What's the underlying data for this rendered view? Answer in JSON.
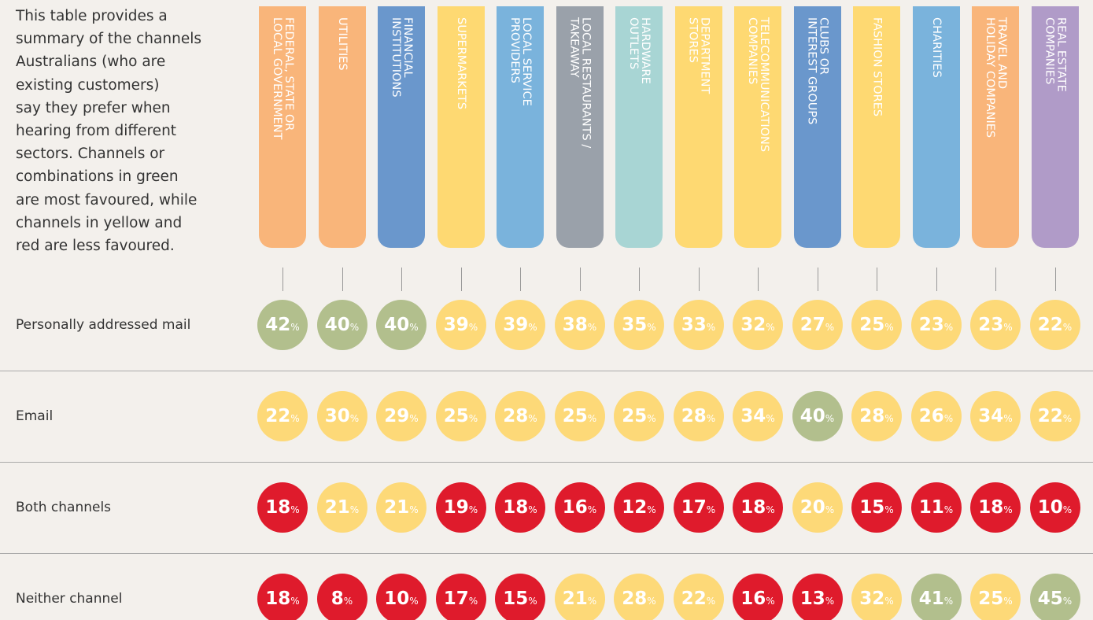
{
  "intro": [
    "This table provides a",
    "summary of the channels",
    "Australians (who are",
    "existing customers)",
    "say they prefer when",
    "hearing from different",
    "sectors. Channels or",
    "combinations in green",
    "are most favoured, while",
    "channels in yellow and",
    "red are less favoured."
  ],
  "unit": "%",
  "columns": [
    {
      "lines": [
        "FEDERAL, STATE OR",
        "LOCAL GOVERNMENT"
      ],
      "color": "#f9b57a"
    },
    {
      "lines": [
        "UTILITIES"
      ],
      "color": "#f9b57a"
    },
    {
      "lines": [
        "FINANCIAL",
        "INSTITUTIONS"
      ],
      "color": "#6a97cc"
    },
    {
      "lines": [
        "SUPERMARKETS"
      ],
      "color": "#fed972"
    },
    {
      "lines": [
        "LOCAL SERVICE",
        "PROVIDERS"
      ],
      "color": "#7ab3dc"
    },
    {
      "lines": [
        "LOCAL RESTAURANTS /",
        "TAKEAWAY"
      ],
      "color": "#9aa1aa"
    },
    {
      "lines": [
        "HARDWARE",
        "OUTLETS"
      ],
      "color": "#a8d5d4"
    },
    {
      "lines": [
        "DEPARTMENT",
        "STORES"
      ],
      "color": "#fed972"
    },
    {
      "lines": [
        "TELECOMMUNICATIONS",
        "COMPANIES"
      ],
      "color": "#fed972"
    },
    {
      "lines": [
        "CLUBS OR",
        "INTEREST GROUPS"
      ],
      "color": "#6a97cc"
    },
    {
      "lines": [
        "FASHION STORES"
      ],
      "color": "#fed972"
    },
    {
      "lines": [
        "CHARITIES"
      ],
      "color": "#7ab3dc"
    },
    {
      "lines": [
        "TRAVEL AND",
        "HOLIDAY COMPANIES"
      ],
      "color": "#f9b57a"
    },
    {
      "lines": [
        "REAL ESTATE",
        "COMPANIES"
      ],
      "color": "#b09bc8"
    }
  ],
  "rows": [
    {
      "label": "Personally addressed mail",
      "cells": [
        {
          "value": 42,
          "color": "#b2bf8d"
        },
        {
          "value": 40,
          "color": "#b2bf8d"
        },
        {
          "value": 40,
          "color": "#b2bf8d"
        },
        {
          "value": 39,
          "color": "#fdd978"
        },
        {
          "value": 39,
          "color": "#fdd978"
        },
        {
          "value": 38,
          "color": "#fdd978"
        },
        {
          "value": 35,
          "color": "#fdd978"
        },
        {
          "value": 33,
          "color": "#fdd978"
        },
        {
          "value": 32,
          "color": "#fdd978"
        },
        {
          "value": 27,
          "color": "#fdd978"
        },
        {
          "value": 25,
          "color": "#fdd978"
        },
        {
          "value": 23,
          "color": "#fdd978"
        },
        {
          "value": 23,
          "color": "#fdd978"
        },
        {
          "value": 22,
          "color": "#fdd978"
        }
      ]
    },
    {
      "label": "Email",
      "cells": [
        {
          "value": 22,
          "color": "#fdd978"
        },
        {
          "value": 30,
          "color": "#fdd978"
        },
        {
          "value": 29,
          "color": "#fdd978"
        },
        {
          "value": 25,
          "color": "#fdd978"
        },
        {
          "value": 28,
          "color": "#fdd978"
        },
        {
          "value": 25,
          "color": "#fdd978"
        },
        {
          "value": 25,
          "color": "#fdd978"
        },
        {
          "value": 28,
          "color": "#fdd978"
        },
        {
          "value": 34,
          "color": "#fdd978"
        },
        {
          "value": 40,
          "color": "#b2bf8d"
        },
        {
          "value": 28,
          "color": "#fdd978"
        },
        {
          "value": 26,
          "color": "#fdd978"
        },
        {
          "value": 34,
          "color": "#fdd978"
        },
        {
          "value": 22,
          "color": "#fdd978"
        }
      ]
    },
    {
      "label": "Both channels",
      "cells": [
        {
          "value": 18,
          "color": "#df1b2c"
        },
        {
          "value": 21,
          "color": "#fdd978"
        },
        {
          "value": 21,
          "color": "#fdd978"
        },
        {
          "value": 19,
          "color": "#df1b2c"
        },
        {
          "value": 18,
          "color": "#df1b2c"
        },
        {
          "value": 16,
          "color": "#df1b2c"
        },
        {
          "value": 12,
          "color": "#df1b2c"
        },
        {
          "value": 17,
          "color": "#df1b2c"
        },
        {
          "value": 18,
          "color": "#df1b2c"
        },
        {
          "value": 20,
          "color": "#fdd978"
        },
        {
          "value": 15,
          "color": "#df1b2c"
        },
        {
          "value": 11,
          "color": "#df1b2c"
        },
        {
          "value": 18,
          "color": "#df1b2c"
        },
        {
          "value": 10,
          "color": "#df1b2c"
        }
      ]
    },
    {
      "label": "Neither channel",
      "cells": [
        {
          "value": 18,
          "color": "#df1b2c"
        },
        {
          "value": 8,
          "color": "#df1b2c"
        },
        {
          "value": 10,
          "color": "#df1b2c"
        },
        {
          "value": 17,
          "color": "#df1b2c"
        },
        {
          "value": 15,
          "color": "#df1b2c"
        },
        {
          "value": 21,
          "color": "#fdd978"
        },
        {
          "value": 28,
          "color": "#fdd978"
        },
        {
          "value": 22,
          "color": "#fdd978"
        },
        {
          "value": 16,
          "color": "#df1b2c"
        },
        {
          "value": 13,
          "color": "#df1b2c"
        },
        {
          "value": 32,
          "color": "#fdd978"
        },
        {
          "value": 41,
          "color": "#b2bf8d"
        },
        {
          "value": 25,
          "color": "#fdd978"
        },
        {
          "value": 45,
          "color": "#b2bf8d"
        }
      ]
    }
  ]
}
